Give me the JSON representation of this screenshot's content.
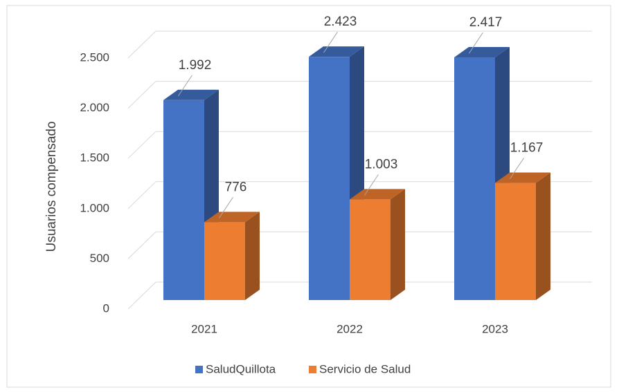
{
  "chart_data": {
    "type": "bar3d",
    "y_label": "Usuarios compensado",
    "categories": [
      "2021",
      "2022",
      "2023"
    ],
    "series": [
      {
        "name": "SaludQuillota",
        "color": "#4472c4",
        "values": [
          1992,
          2423,
          2417
        ],
        "value_labels": [
          "1.992",
          "2.423",
          "2.417"
        ]
      },
      {
        "name": "Servicio de Salud",
        "color": "#ed7d31",
        "values": [
          776,
          1003,
          1167
        ],
        "value_labels": [
          "776",
          "1.003",
          "1.167"
        ]
      }
    ],
    "ylim": [
      0,
      2500
    ],
    "yticks": [
      0,
      500,
      {
        "value": 1000,
        "label": "1.000"
      },
      {
        "value": 1500,
        "label": "1.500"
      },
      {
        "value": 2000,
        "label": "2.000"
      },
      {
        "value": 2500,
        "label": "2.500"
      }
    ],
    "grid": true,
    "legend": "bottom"
  }
}
